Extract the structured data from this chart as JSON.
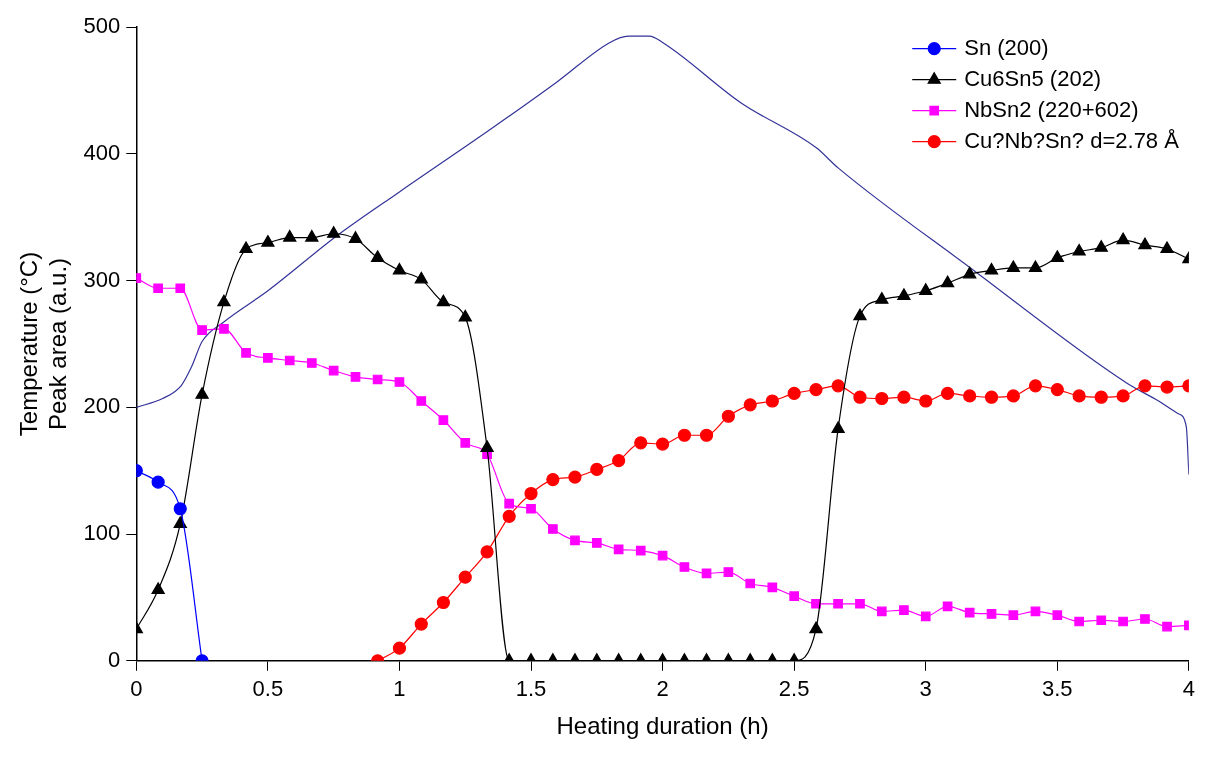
{
  "chart_data": {
    "type": "line",
    "xlabel": "Heating duration (h)",
    "ylabel": "Temperature (°C)\nPeak area (a.u.)",
    "xlim": [
      0,
      4
    ],
    "ylim": [
      0,
      500
    ],
    "xticks": [
      0,
      0.5,
      1,
      1.5,
      2,
      2.5,
      3,
      3.5,
      4
    ],
    "yticks": [
      0,
      100,
      200,
      300,
      400,
      500
    ],
    "grid": false,
    "legend": "top right",
    "line_style": "solid",
    "series": [
      {
        "name": "Sn (200)",
        "color": "#0000ff",
        "marker": "circle",
        "x": [
          0,
          0.083,
          0.167,
          0.25
        ],
        "values": [
          150,
          141,
          120,
          0
        ]
      },
      {
        "name": "Cu6Sn5 (202)",
        "color": "#000000",
        "marker": "triangle",
        "x": [
          0,
          0.083,
          0.167,
          0.25,
          0.333,
          0.417,
          0.5,
          0.583,
          0.667,
          0.75,
          0.833,
          0.917,
          1,
          1.083,
          1.167,
          1.25,
          1.333,
          1.417,
          1.5,
          1.583,
          1.667,
          1.75,
          1.833,
          1.917,
          2,
          2.083,
          2.167,
          2.25,
          2.333,
          2.417,
          2.5,
          2.583,
          2.667,
          2.75,
          2.833,
          2.917,
          3,
          3.083,
          3.167,
          3.25,
          3.333,
          3.417,
          3.5,
          3.583,
          3.667,
          3.75,
          3.833,
          3.917,
          4
        ],
        "values": [
          25,
          56,
          108,
          210,
          283,
          325,
          330,
          334,
          334,
          337,
          333,
          318,
          308,
          301,
          283,
          271,
          168,
          0,
          0,
          0,
          0,
          0,
          0,
          0,
          0,
          0,
          0,
          0,
          0,
          0,
          0,
          25,
          183,
          272,
          285,
          288,
          292,
          298,
          305,
          308,
          310,
          310,
          318,
          323,
          326,
          332,
          328,
          325,
          317
        ]
      },
      {
        "name": "NbSn2 (220+602)",
        "color": "#ff00ff",
        "marker": "square",
        "x": [
          0,
          0.083,
          0.167,
          0.25,
          0.333,
          0.417,
          0.5,
          0.583,
          0.667,
          0.75,
          0.833,
          0.917,
          1,
          1.083,
          1.167,
          1.25,
          1.333,
          1.417,
          1.5,
          1.583,
          1.667,
          1.75,
          1.833,
          1.917,
          2,
          2.083,
          2.167,
          2.25,
          2.333,
          2.417,
          2.5,
          2.583,
          2.667,
          2.75,
          2.833,
          2.917,
          3,
          3.083,
          3.167,
          3.25,
          3.333,
          3.417,
          3.5,
          3.583,
          3.667,
          3.75,
          3.833,
          3.917,
          4
        ],
        "values": [
          302,
          294,
          294,
          261,
          262,
          243,
          239,
          237,
          235,
          229,
          224,
          222,
          220,
          205,
          190,
          172,
          163,
          124,
          120,
          104,
          95,
          93,
          88,
          87,
          83,
          74,
          69,
          70,
          61,
          58,
          51,
          45,
          45,
          45,
          39,
          40,
          35,
          43,
          38,
          37,
          36,
          39,
          36,
          31,
          32,
          31,
          33,
          27,
          28
        ]
      },
      {
        "name": "Cu?Nb?Sn? d=2.78 Å",
        "color": "#ff0000",
        "marker": "circle",
        "x": [
          0.917,
          1,
          1.083,
          1.167,
          1.25,
          1.333,
          1.417,
          1.5,
          1.583,
          1.667,
          1.75,
          1.833,
          1.917,
          2,
          2.083,
          2.167,
          2.25,
          2.333,
          2.417,
          2.5,
          2.583,
          2.667,
          2.75,
          2.833,
          2.917,
          3,
          3.083,
          3.167,
          3.25,
          3.333,
          3.417,
          3.5,
          3.583,
          3.667,
          3.75,
          3.833,
          3.917,
          4
        ],
        "values": [
          0,
          10,
          29,
          46,
          66,
          86,
          114,
          132,
          143,
          145,
          151,
          158,
          172,
          171,
          178,
          178,
          193,
          202,
          205,
          211,
          214,
          217,
          208,
          207,
          208,
          205,
          211,
          209,
          208,
          209,
          217,
          214,
          209,
          208,
          209,
          217,
          216,
          217
        ]
      },
      {
        "color": "#333399",
        "marker": "none",
        "x": [
          0,
          0.1,
          0.17,
          0.21,
          0.25,
          0.33,
          0.5,
          0.76,
          1,
          1.35,
          1.6,
          1.8,
          1.87,
          1.95,
          2,
          2.3,
          2.583,
          2.667,
          3.17,
          3.765,
          3.885,
          3.96,
          3.99,
          4
        ],
        "values": [
          200,
          207,
          217,
          232,
          252,
          267,
          292,
          335,
          370,
          420,
          457,
          488,
          493,
          493,
          488,
          440,
          405,
          389,
          310,
          219,
          205,
          195,
          185,
          147
        ]
      }
    ]
  }
}
